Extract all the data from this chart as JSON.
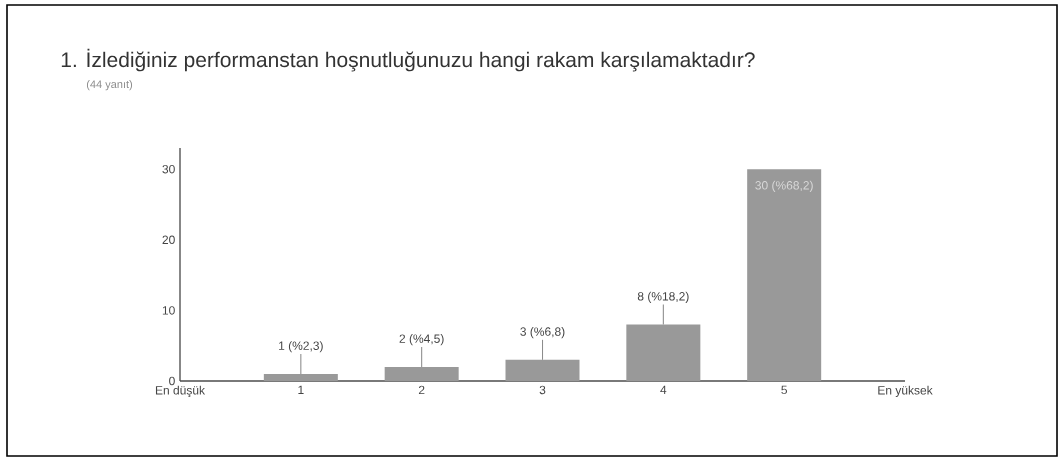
{
  "chart_data": {
    "type": "bar",
    "title": "1. İzlediğiniz performanstan hoşnutluğunuzu hangi rakam karşılamaktadır?",
    "subtitle": "(44 yanıt)",
    "categories": [
      "En düşük",
      "1",
      "2",
      "3",
      "4",
      "5",
      "En yüksek"
    ],
    "values": [
      null,
      1,
      2,
      3,
      8,
      30,
      null
    ],
    "value_labels": [
      null,
      "1 (%2,3)",
      "2 (%4,5)",
      "3 (%6,8)",
      "8 (%18,2)",
      "30 (%68,2)",
      null
    ],
    "color": "#999999",
    "ylim": [
      0,
      33
    ],
    "yticks": [
      0,
      10,
      20,
      30
    ],
    "grid": false
  }
}
